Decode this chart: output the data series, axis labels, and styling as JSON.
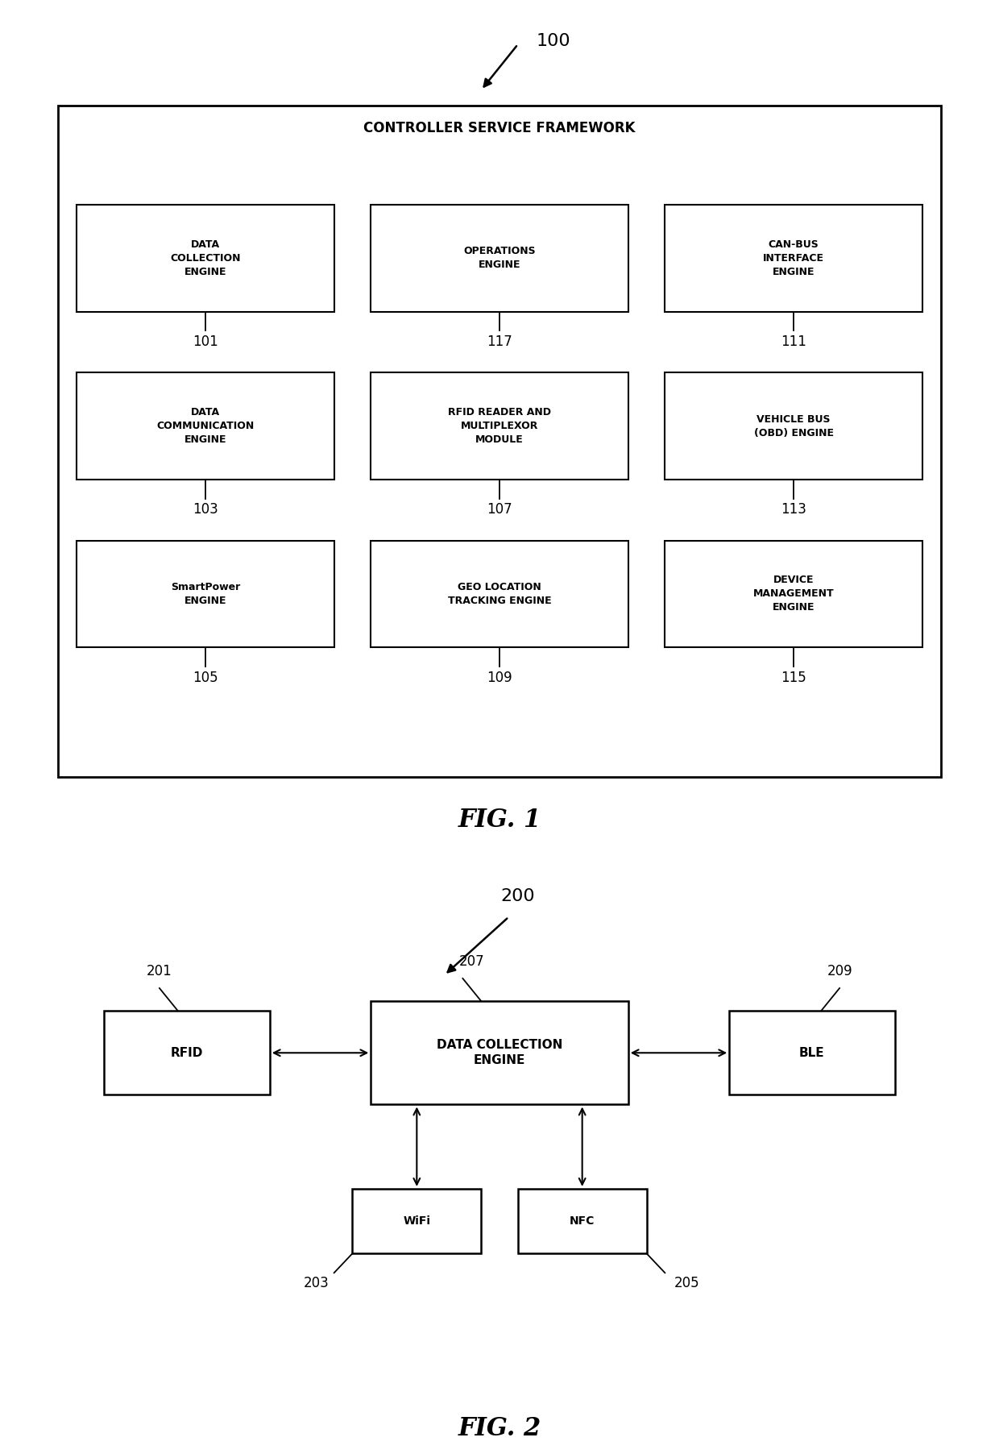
{
  "bg_color": "#ffffff",
  "box_color": "#ffffff",
  "box_edge_color": "#000000",
  "text_color": "#000000",
  "fig1": {
    "ref_label": "100",
    "framework_label": "CONTROLLER SERVICE FRAMEWORK",
    "fig_label": "FIG. 1",
    "boxes": [
      {
        "label": "DATA\nCOLLECTION\nENGINE",
        "num": "101",
        "col": 0,
        "row": 0
      },
      {
        "label": "OPERATIONS\nENGINE",
        "num": "117",
        "col": 1,
        "row": 0
      },
      {
        "label": "CAN-BUS\nINTERFACE\nENGINE",
        "num": "111",
        "col": 2,
        "row": 0
      },
      {
        "label": "DATA\nCOMMUNICATION\nENGINE",
        "num": "103",
        "col": 0,
        "row": 1
      },
      {
        "label": "RFID READER AND\nMULTIPLEXOR\nMODULE",
        "num": "107",
        "col": 1,
        "row": 1
      },
      {
        "label": "VEHICLE BUS\n(OBD) ENGINE",
        "num": "113",
        "col": 2,
        "row": 1
      },
      {
        "label": "SmartPower\nENGINE",
        "num": "105",
        "col": 0,
        "row": 2
      },
      {
        "label": "GEO LOCATION\nTRACKING ENGINE",
        "num": "109",
        "col": 1,
        "row": 2
      },
      {
        "label": "DEVICE\nMANAGEMENT\nENGINE",
        "num": "115",
        "col": 2,
        "row": 2
      }
    ]
  },
  "fig2": {
    "ref_label": "200",
    "fig_label": "FIG. 2",
    "center_box": {
      "label": "DATA COLLECTION\nENGINE",
      "num": "207"
    },
    "left_box": {
      "label": "RFID",
      "num": "201"
    },
    "right_box": {
      "label": "BLE",
      "num": "209"
    },
    "bottom_left_box": {
      "label": "WiFi",
      "num": "203"
    },
    "bottom_right_box": {
      "label": "NFC",
      "num": "205"
    }
  }
}
